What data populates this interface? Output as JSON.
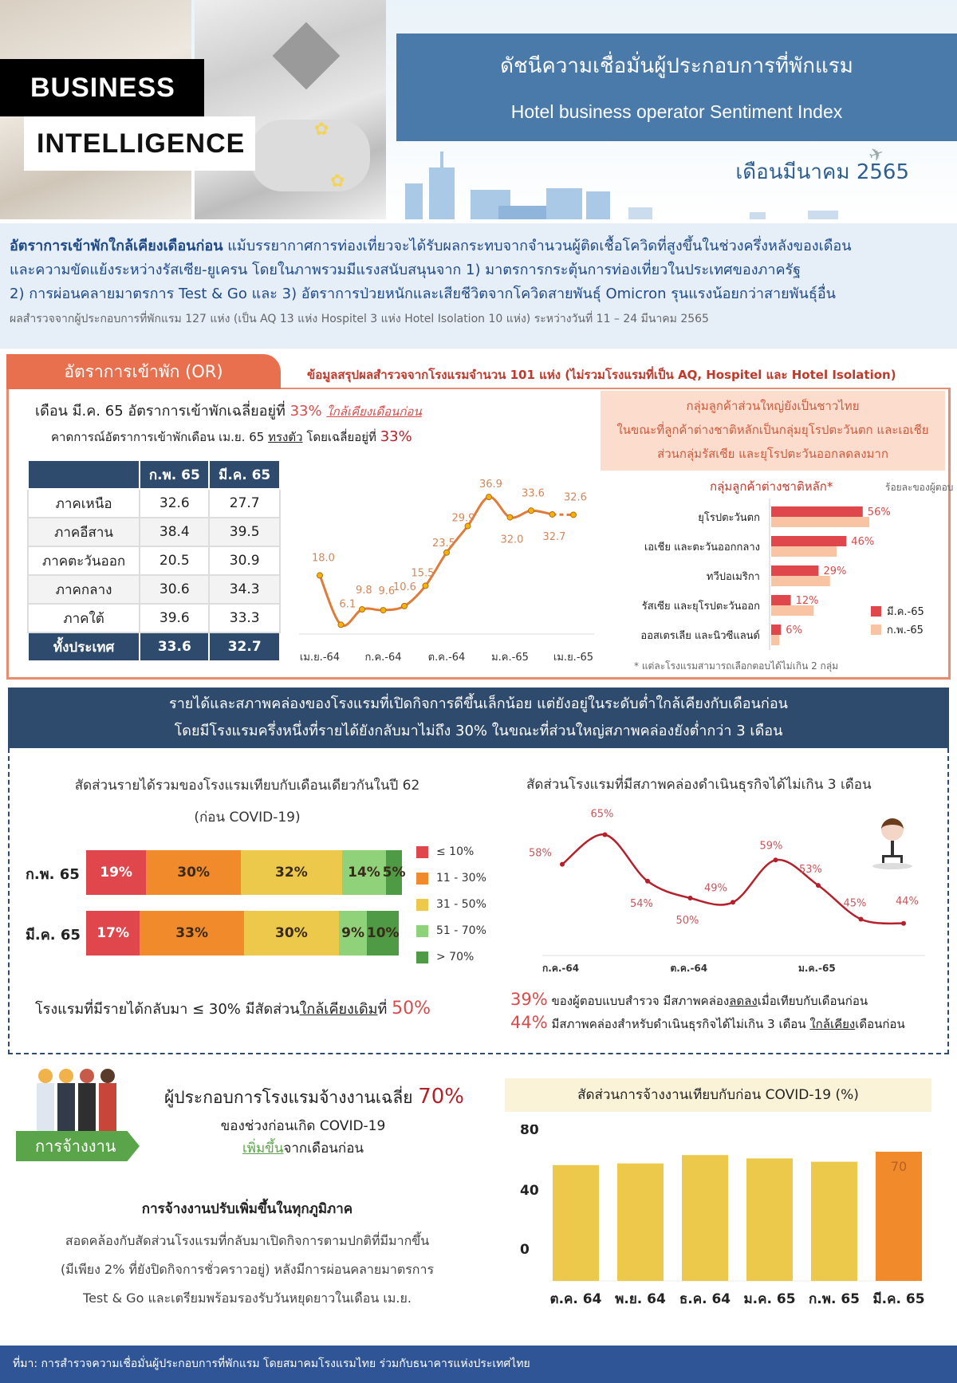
{
  "header": {
    "badge_line1": "BUSINESS",
    "badge_line2": "INTELLIGENCE",
    "title_th": "ดัชนีความเชื่อมั่นผู้ประกอบการที่พักแรม",
    "title_en": "Hotel business operator Sentiment Index",
    "month": "เดือนมีนาคม 2565"
  },
  "summary": {
    "line1_bold": "อัตราการเข้าพักใกล้เคียงเดือนก่อน",
    "line1_rest": " แม้บรรยากาศการท่องเที่ยวจะได้รับผลกระทบจากจำนวนผู้ติดเชื้อโควิดที่สูงขึ้นในช่วงครึ่งหลังของเดือน",
    "line2": "และความขัดแย้งระหว่างรัสเซีย-ยูเครน โดยในภาพรวมมีแรงสนับสนุนจาก  1) มาตรการกระตุ้นการท่องเที่ยวในประเทศของภาครัฐ",
    "line3": "2) การผ่อนคลายมาตรการ Test & Go และ 3) อัตราการป่วยหนักและเสียชีวิตจากโควิดสายพันธุ์ Omicron รุนแรงน้อยกว่าสายพันธุ์อื่น",
    "survey_note": "ผลสำรวจจากผู้ประกอบการที่พักแรม 127 แห่ง (เป็น AQ 13 แห่ง Hospitel 3 แห่ง Hotel Isolation 10 แห่ง) ระหว่างวันที่ 11 – 24 มีนาคม 2565"
  },
  "occupancy": {
    "tab_label": "อัตราการเข้าพัก (OR)",
    "subtitle": "ข้อมูลสรุปผลสำรวจจากโรงแรมจำนวน 101 แห่ง (ไม่รวมโรงแรมที่เป็น AQ, Hospitel และ Hotel Isolation)",
    "headline_prefix": "เดือน มี.ค. 65 อัตราการเข้าพักเฉลี่ยอยู่ที่ ",
    "headline_value": "33%",
    "headline_note": "ใกล้เคียงเดือนก่อน",
    "forecast_prefix": "คาดการณ์อัตราการเข้าพักเดือน  เม.ย. 65 ",
    "forecast_trend": "ทรงตัว",
    "forecast_mid": " โดยเฉลี่ยอยู่ที่ ",
    "forecast_value": "33%",
    "table": {
      "headers": [
        "",
        "ก.พ. 65",
        "มี.ค. 65"
      ],
      "rows": [
        [
          "ภาคเหนือ",
          "32.6",
          "27.7"
        ],
        [
          "ภาคอีสาน",
          "38.4",
          "39.5"
        ],
        [
          "ภาคตะวันออก",
          "20.5",
          "30.9"
        ],
        [
          "ภาคกลาง",
          "30.6",
          "34.3"
        ],
        [
          "ภาคใต้",
          "39.6",
          "33.3"
        ]
      ],
      "total": [
        "ทั้งประเทศ",
        "33.6",
        "32.7"
      ]
    },
    "foreign_box": {
      "line1": "กลุ่มลูกค้าส่วนใหญ่ยังเป็นชาวไทย",
      "line2": "ในขณะที่ลูกค้าต่างชาติหลักเป็นกลุ่มยุโรปตะวันตก และเอเชีย",
      "line3": "ส่วนกลุ่มรัสเซีย และยุโรปตะวันออกลดลงมาก"
    },
    "foreign_title": "กลุ่มลูกค้าต่างชาติหลัก*",
    "foreign_unit": "ร้อยละของผู้ตอบ",
    "foreign_footnote": "* แต่ละโรงแรมสามารถเลือกตอบได้ไม่เกิน 2 กลุ่ม"
  },
  "revenue": {
    "header_line1": "รายได้และสภาพคล่องของโรงแรมที่เปิดกิจการดีขึ้นเล็กน้อย  แต่ยังอยู่ในระดับต่ำใกล้เคียงกับเดือนก่อน",
    "header_line2": "โดยมีโรงแรมครึ่งหนึ่งที่รายได้ยังกลับมาไม่ถึง 30% ในขณะที่ส่วนใหญ่สภาพคล่องยังต่ำกว่า 3 เดือน",
    "chart_title1": "สัดส่วนรายได้รวมของโรงแรมเทียบกับเดือนเดียวกันในปี  62",
    "chart_title2": "(ก่อน COVID-19)",
    "note_prefix": "โรงแรมที่มีรายได้กลับมา ≤ 30% มีสัดส่วน",
    "note_ul": "ใกล้เคียงเดิม",
    "note_mid": "ที่ ",
    "note_value": "50%",
    "liquidity_title": "สัดส่วนโรงแรมที่มีสภาพคล่องดำเนินธุรกิจได้ไม่เกิน  3 เดือน",
    "liq_note1_pct": "39%",
    "liq_note1_a": " ของผู้ตอบแบบสำรวจ  มีสภาพคล่อง",
    "liq_note1_ul": "ลดลง",
    "liq_note1_b": "เมื่อเทียบกับเดือนก่อน",
    "liq_note2_pct": "44%",
    "liq_note2_a": " มีสภาพคล่องสำหรับดำเนินธุรกิจได้ไม่เกิน 3 เดือน ",
    "liq_note2_ul": "ใกล้เคียง",
    "liq_note2_b": "เดือนก่อน"
  },
  "employment": {
    "tag": "การจ้างงาน",
    "headline": "ผู้ประกอบการโรงแรมจ้างงานเฉลี่ย ",
    "headline_value": "70%",
    "sub1": "ของช่วงก่อนเกิด COVID-19",
    "sub2_green": "เพิ่มขึ้น",
    "sub2_rest": "จากเดือนก่อน",
    "body_title": "การจ้างงานปรับเพิ่มขึ้นในทุกภูมิภาค",
    "body_line1": "สอดคล้องกับสัดส่วนโรงแรมที่กลับมาเปิดกิจการตามปกติที่มีมากขึ้น",
    "body_line2": "(มีเพียง 2% ที่ยังปิดกิจการชั่วคราวอยู่) หลังมีการผ่อนคลายมาตรการ",
    "body_line3": "Test & Go และเตรียมพร้อมรองรับวันหยุดยาวในเดือน เม.ย.",
    "chart_title": "สัดส่วนการจ้างงานเทียบกับก่อน COVID-19 (%)"
  },
  "footer": {
    "source": "ที่มา: การสำรวจความเชื่อมั่นผู้ประกอบการที่พักแรม โดยสมาคมโรงแรมไทย ร่วมกับธนาคารแห่งประเทศไทย"
  },
  "colors": {
    "primary_blue": "#4a7aaa",
    "navy": "#2e4a6c",
    "or_orange": "#e8704e",
    "line_orange": "#e07b39",
    "liq_red": "#b5202a",
    "bar_red": "#e0474c",
    "bar_peach": "#f8c4a4",
    "emp_yellow": "#ecc94b",
    "emp_orange": "#f08a2a",
    "footer_blue": "#2f5597"
  },
  "chart_data": [
    {
      "type": "line",
      "title": "อัตราการเข้าพัก (OR)",
      "x": [
        "เม.ย.-64",
        "พ.ค.-64",
        "มิ.ย.-64",
        "ก.ค.-64",
        "ส.ค.-64",
        "ก.ย.-64",
        "ต.ค.-64",
        "พ.ย.-64",
        "ธ.ค.-64",
        "ม.ค.-65",
        "ก.พ.-65",
        "มี.ค.-65",
        "เม.ย.-65"
      ],
      "tick_labels": [
        "เม.ย.-64",
        "ก.ค.-64",
        "ต.ค.-64",
        "ม.ค.-65",
        "เม.ย.-65"
      ],
      "values": [
        18.0,
        6.1,
        9.8,
        9.6,
        10.6,
        15.5,
        23.5,
        29.9,
        36.9,
        32.0,
        33.6,
        32.7,
        32.6
      ],
      "annotations": "last point เม.ย.-65 is a forecast (dashed segment)",
      "ylim": [
        0,
        40
      ],
      "grid": false
    },
    {
      "type": "bar",
      "orientation": "horizontal",
      "title": "กลุ่มลูกค้าต่างชาติหลัก*",
      "ylabel": "ร้อยละของผู้ตอบ",
      "categories": [
        "ยุโรปตะวันตก",
        "เอเชีย และตะวันออกกลาง",
        "ทวีปอเมริกา",
        "รัสเซีย และยุโรปตะวันออก",
        "ออสเตรเลีย และนิวซีแลนด์"
      ],
      "series": [
        {
          "name": "มี.ค.-65",
          "color": "#e0474c",
          "values": [
            56,
            46,
            29,
            12,
            6
          ]
        },
        {
          "name": "ก.พ.-65",
          "color": "#f8c4a4",
          "values": [
            60,
            40,
            36,
            26,
            5
          ]
        }
      ],
      "legend_position": "right"
    },
    {
      "type": "bar",
      "orientation": "horizontal-stacked",
      "title": "สัดส่วนรายได้รวมของโรงแรมเทียบกับเดือนเดียวกันในปี 62 (ก่อน COVID-19)",
      "categories": [
        "ก.พ. 65",
        "มี.ค. 65"
      ],
      "series": [
        {
          "name": "≤ 10%",
          "color": "#e0474c",
          "values": [
            19,
            17
          ]
        },
        {
          "name": "11 - 30%",
          "color": "#f08a2a",
          "values": [
            30,
            33
          ]
        },
        {
          "name": "31 - 50%",
          "color": "#ecc94b",
          "values": [
            32,
            30
          ]
        },
        {
          "name": "51 - 70%",
          "color": "#8fd27a",
          "values": [
            14,
            9
          ]
        },
        {
          "name": "> 70%",
          "color": "#4e9a45",
          "values": [
            5,
            10
          ]
        }
      ],
      "legend_position": "right"
    },
    {
      "type": "line",
      "title": "สัดส่วนโรงแรมที่มีสภาพคล่องดำเนินธุรกิจได้ไม่เกิน 3 เดือน",
      "x": [
        "ก.ค.-64",
        "ส.ค.-64",
        "ก.ย.-64",
        "ต.ค.-64",
        "พ.ย.-64",
        "ธ.ค.-64",
        "ม.ค.-65",
        "ก.พ.-65",
        "มี.ค.-65"
      ],
      "tick_labels": [
        "ก.ค.-64",
        "ต.ค.-64",
        "ม.ค.-65"
      ],
      "values": [
        58,
        65,
        54,
        50,
        49,
        59,
        53,
        45,
        44
      ],
      "unit": "%",
      "grid": false
    },
    {
      "type": "bar",
      "title": "สัดส่วนการจ้างงานเทียบกับก่อน COVID-19 (%)",
      "categories": [
        "ต.ค. 64",
        "พ.ย. 64",
        "ธ.ค. 64",
        "ม.ค. 65",
        "ก.พ. 65",
        "มี.ค. 65"
      ],
      "values": [
        62,
        63,
        68,
        66,
        64,
        70
      ],
      "yticks": [
        0,
        40,
        80
      ],
      "highlight": {
        "index": 5,
        "label": "70",
        "color": "#f08a2a"
      },
      "ylim": [
        0,
        80
      ]
    }
  ]
}
